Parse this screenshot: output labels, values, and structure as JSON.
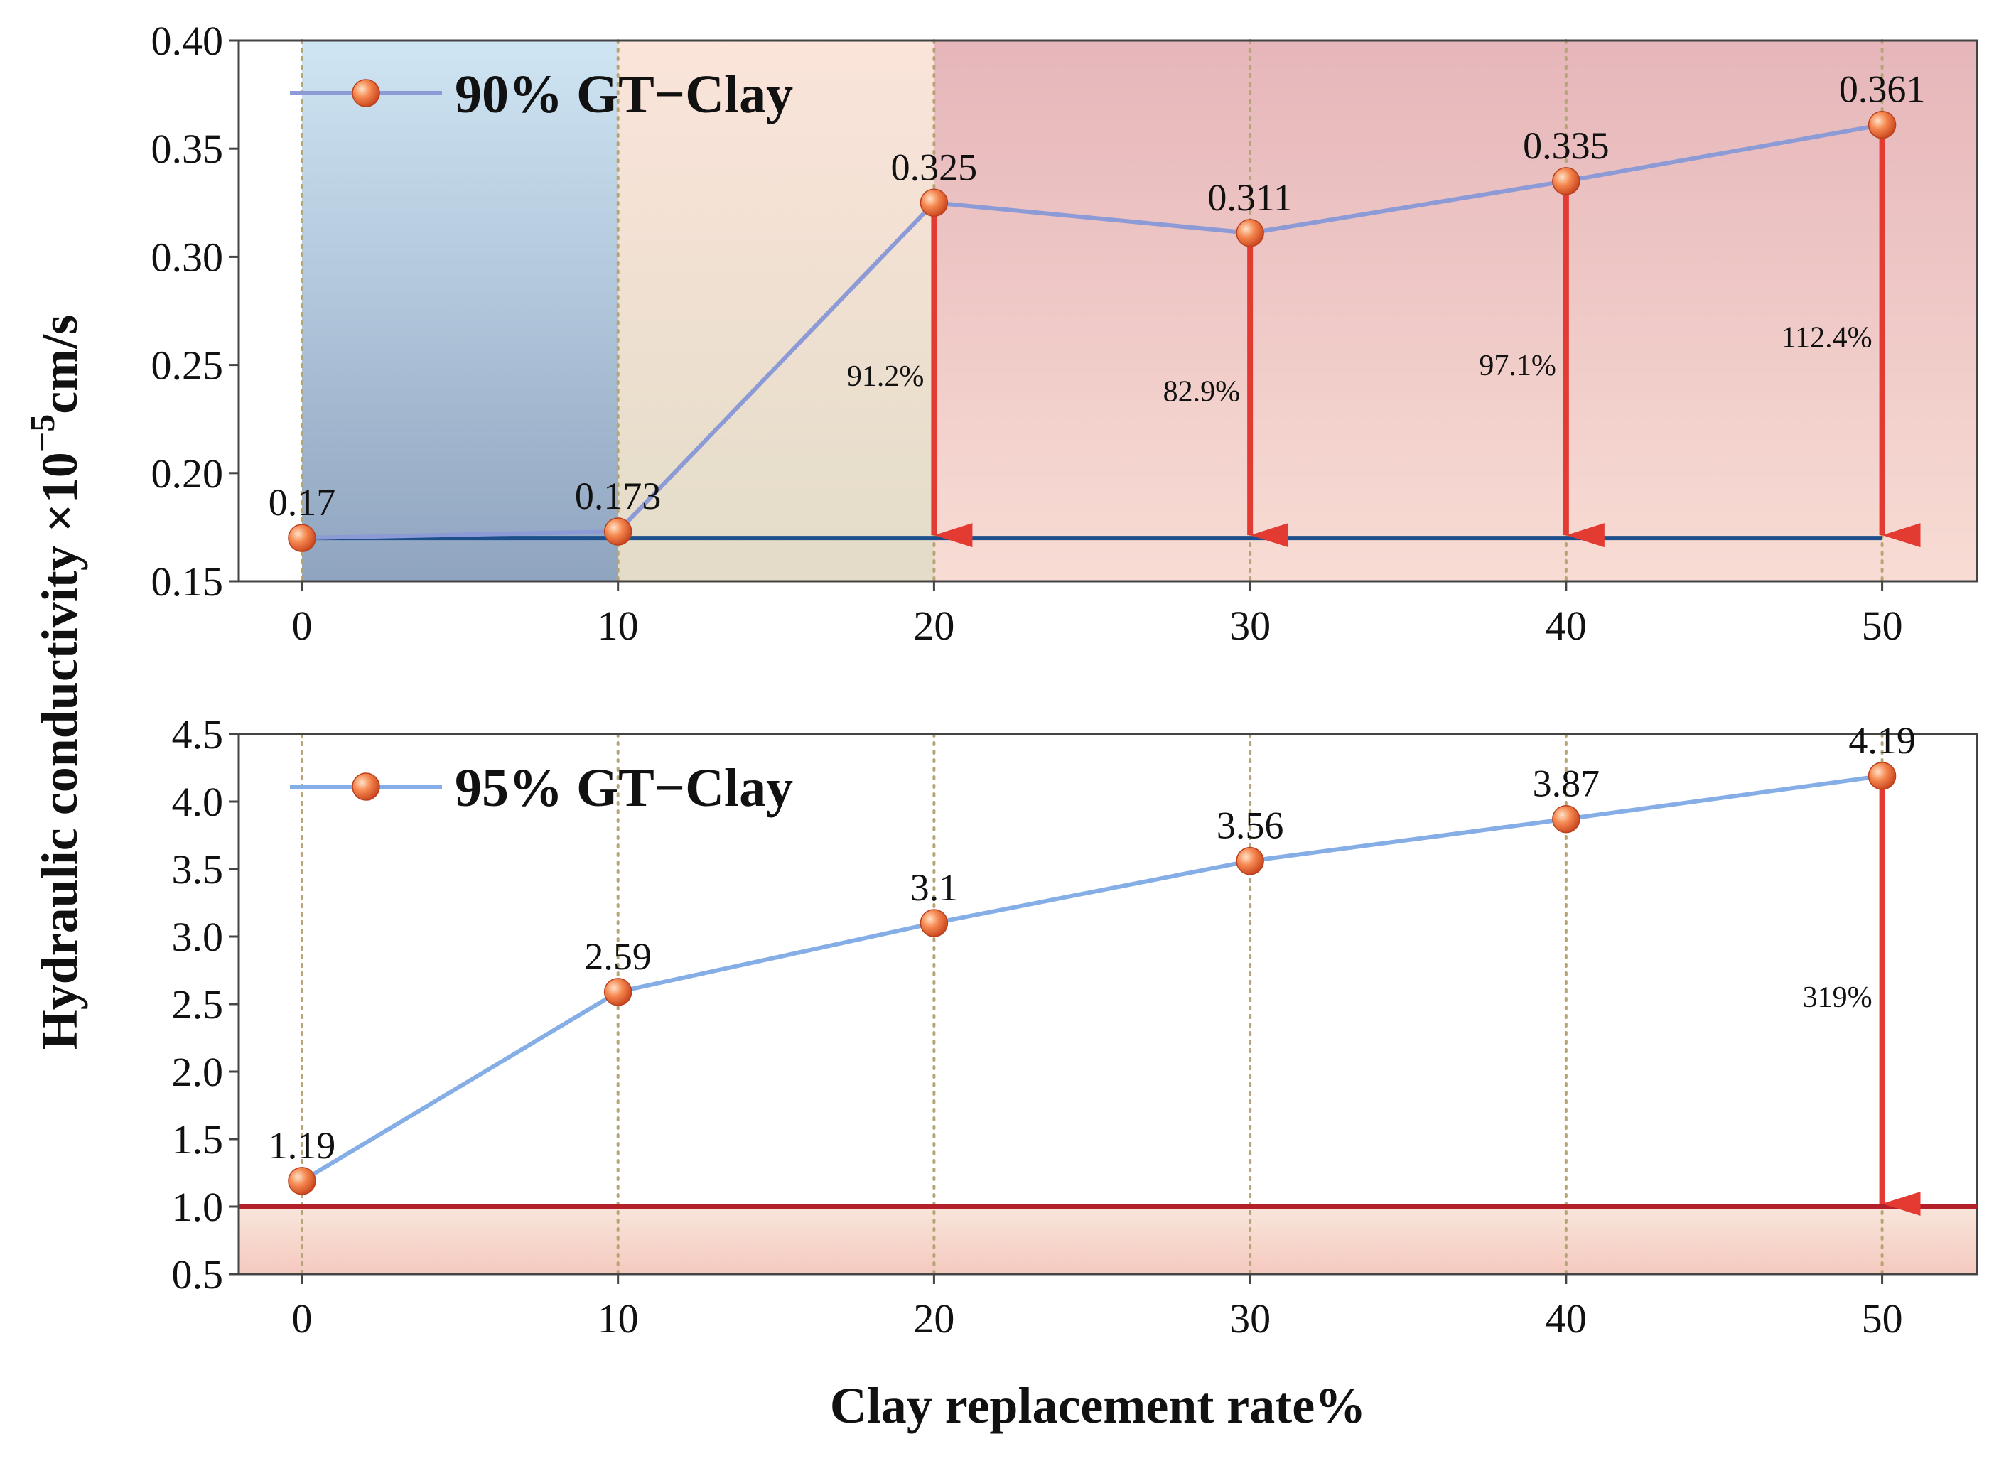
{
  "chart_data": [
    {
      "type": "line",
      "x": [
        0,
        10,
        20,
        30,
        40,
        50
      ],
      "xticks": [
        "0",
        "10",
        "20",
        "30",
        "40",
        "50"
      ],
      "ylim": [
        0.15,
        0.4
      ],
      "yticks": [
        "0.15",
        "0.20",
        "0.25",
        "0.30",
        "0.35",
        "0.40"
      ],
      "series": [
        {
          "name": "90% GT−Clay",
          "values": [
            0.17,
            0.173,
            0.325,
            0.311,
            0.335,
            0.361
          ],
          "color": "#8c9ad6"
        }
      ],
      "data_labels": [
        "0.17",
        "0.173",
        "0.325",
        "0.311",
        "0.335",
        "0.361"
      ],
      "reference_line": {
        "value": 0.17,
        "color": "#1d4f8c"
      },
      "arrows": [
        {
          "x": 20,
          "label": "91.2%"
        },
        {
          "x": 30,
          "label": "82.9%"
        },
        {
          "x": 40,
          "label": "97.1%"
        },
        {
          "x": 50,
          "label": "112.4%"
        }
      ],
      "legend": {
        "position": "top-left",
        "label": "90% GT−Clay"
      },
      "colors": {
        "marker": "#f0774a",
        "arrow": "#e33a32",
        "grid": "#b5a576"
      }
    },
    {
      "type": "line",
      "x": [
        0,
        10,
        20,
        30,
        40,
        50
      ],
      "xticks": [
        "0",
        "10",
        "20",
        "30",
        "40",
        "50"
      ],
      "ylim": [
        0.5,
        4.5
      ],
      "yticks": [
        "0.5",
        "1.0",
        "1.5",
        "2.0",
        "2.5",
        "3.0",
        "3.5",
        "4.0",
        "4.5"
      ],
      "series": [
        {
          "name": "95% GT−Clay",
          "values": [
            1.19,
            2.59,
            3.1,
            3.56,
            3.87,
            4.19
          ],
          "color": "#86aee6"
        }
      ],
      "data_labels": [
        "1.19",
        "2.59",
        "3.1",
        "3.56",
        "3.87",
        "4.19"
      ],
      "reference_line": {
        "value": 1.0,
        "color": "#b3202a"
      },
      "arrows": [
        {
          "x": 50,
          "label": "319%"
        }
      ],
      "legend": {
        "position": "top-left",
        "label": "95% GT−Clay"
      },
      "colors": {
        "marker": "#f0774a",
        "arrow": "#e33a32",
        "grid": "#b5a576"
      }
    }
  ],
  "y_axis_title": [
    "Hydraulic conductivity ×10",
    "−5",
    "cm/s"
  ],
  "x_axis_title": "Clay replacement rate%"
}
